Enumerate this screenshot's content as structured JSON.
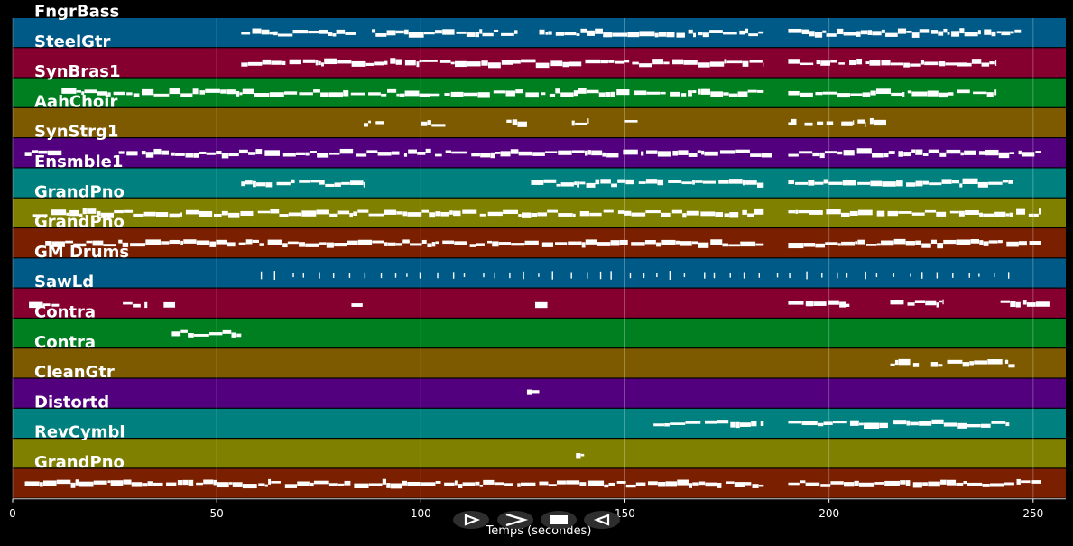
{
  "axis": {
    "label": "Temps (secondes)",
    "min": 0,
    "max": 258,
    "ticks": [
      0,
      50,
      100,
      150,
      200,
      250
    ]
  },
  "tracks": [
    {
      "name": "FngrBass",
      "color": "#005a87",
      "segments": [
        [
          56,
          84
        ],
        [
          88,
          124
        ],
        [
          129,
          184
        ],
        [
          190,
          247
        ]
      ]
    },
    {
      "name": "SteelGtr",
      "color": "#85002e",
      "segments": [
        [
          56,
          184
        ],
        [
          190,
          241
        ]
      ]
    },
    {
      "name": "SynBras1",
      "color": "#007f20",
      "segments": [
        [
          12,
          184
        ],
        [
          190,
          241
        ]
      ]
    },
    {
      "name": "AahChoir",
      "color": "#7d5a00",
      "segments": [
        [
          86,
          91
        ],
        [
          100,
          106
        ],
        [
          121,
          126
        ],
        [
          137,
          141
        ],
        [
          150,
          154
        ],
        [
          190,
          192
        ],
        [
          194,
          196
        ],
        [
          197,
          201
        ],
        [
          203,
          206
        ],
        [
          207,
          209
        ],
        [
          210,
          214
        ]
      ]
    },
    {
      "name": "SynStrg1",
      "color": "#52007d",
      "segments": [
        [
          3,
          12
        ],
        [
          26,
          186
        ],
        [
          190,
          252
        ]
      ]
    },
    {
      "name": "Ensmble1",
      "color": "#00807f",
      "segments": [
        [
          56,
          86
        ],
        [
          127,
          184
        ],
        [
          190,
          245
        ]
      ]
    },
    {
      "name": "GrandPno",
      "color": "#7f7f00",
      "segments": [
        [
          5,
          184
        ],
        [
          190,
          252
        ]
      ]
    },
    {
      "name": "GrandPno",
      "color": "#7a2000",
      "segments": [
        [
          8,
          184
        ],
        [
          190,
          252
        ]
      ]
    },
    {
      "name": "GM Drums",
      "color": "#005a87",
      "segments": [
        [
          60,
          244
        ]
      ]
    },
    {
      "name": "SawLd",
      "color": "#85002e",
      "segments": [
        [
          4,
          12
        ],
        [
          27,
          33
        ],
        [
          37,
          40
        ],
        [
          83,
          86
        ],
        [
          128,
          131
        ],
        [
          190,
          205
        ],
        [
          215,
          228
        ],
        [
          242,
          254
        ]
      ]
    },
    {
      "name": "Contra",
      "color": "#007f20",
      "segments": [
        [
          39,
          56
        ]
      ]
    },
    {
      "name": "Contra",
      "color": "#7d5a00",
      "segments": [
        [
          215,
          222
        ],
        [
          225,
          246
        ]
      ]
    },
    {
      "name": "CleanGtr",
      "color": "#52007d",
      "segments": [
        [
          126,
          129
        ]
      ]
    },
    {
      "name": "Distortd",
      "color": "#00807f",
      "segments": [
        [
          157,
          184
        ],
        [
          190,
          245
        ]
      ]
    },
    {
      "name": "RevCymbl",
      "color": "#7f7f00",
      "segments": [
        [
          138,
          140
        ]
      ]
    },
    {
      "name": "GrandPno",
      "color": "#7a2000",
      "segments": [
        [
          3,
          184
        ],
        [
          190,
          252
        ]
      ]
    }
  ],
  "controls": [
    {
      "name": "play-forward",
      "icon": "play-outline-icon"
    },
    {
      "name": "next",
      "icon": "chevron-right-icon"
    },
    {
      "name": "stop",
      "icon": "stop-icon"
    },
    {
      "name": "play-reverse",
      "icon": "play-reverse-outline-icon"
    }
  ]
}
